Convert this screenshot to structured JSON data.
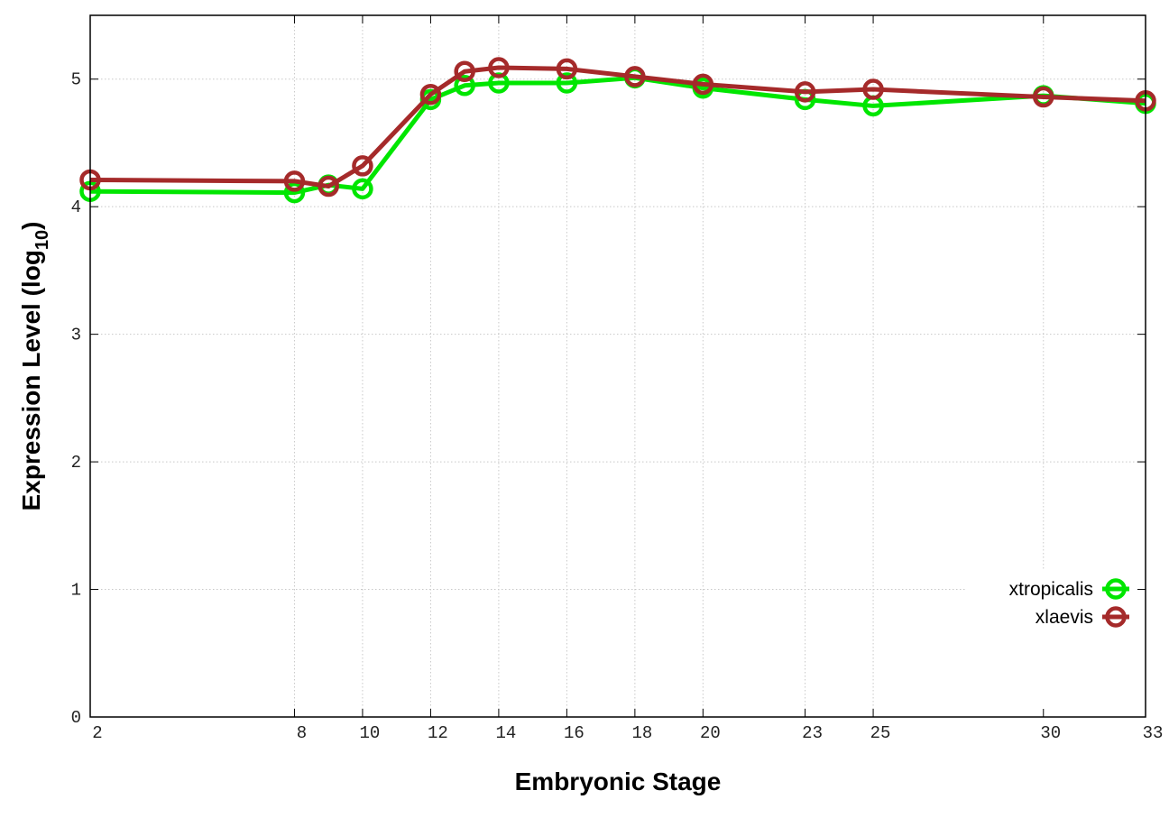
{
  "chart_data": {
    "type": "line",
    "x_label": "Embryonic Stage",
    "y_label": {
      "text": "Expression Level (log",
      "subscript": "10",
      "suffix": ")"
    },
    "x": [
      2,
      8,
      9,
      10,
      12,
      13,
      14,
      16,
      18,
      20,
      23,
      25,
      30,
      33
    ],
    "series": [
      {
        "name": "xtropicalis",
        "color": "#00e600",
        "values": [
          4.12,
          4.11,
          4.17,
          4.14,
          4.84,
          4.95,
          4.97,
          4.97,
          5.01,
          4.93,
          4.84,
          4.79,
          4.87,
          4.81
        ]
      },
      {
        "name": "xlaevis",
        "color": "#a52a2a",
        "values": [
          4.21,
          4.2,
          4.16,
          4.32,
          4.88,
          5.06,
          5.09,
          5.08,
          5.02,
          4.96,
          4.9,
          4.92,
          4.86,
          4.83
        ]
      }
    ],
    "xlim": [
      2,
      33
    ],
    "xticks": [
      2,
      8,
      10,
      12,
      14,
      16,
      18,
      20,
      23,
      25,
      30,
      33
    ],
    "ylim": [
      0,
      5.5
    ],
    "yticks": [
      0,
      1,
      2,
      3,
      4,
      5
    ],
    "grid": true,
    "legend_position": "lower right"
  }
}
